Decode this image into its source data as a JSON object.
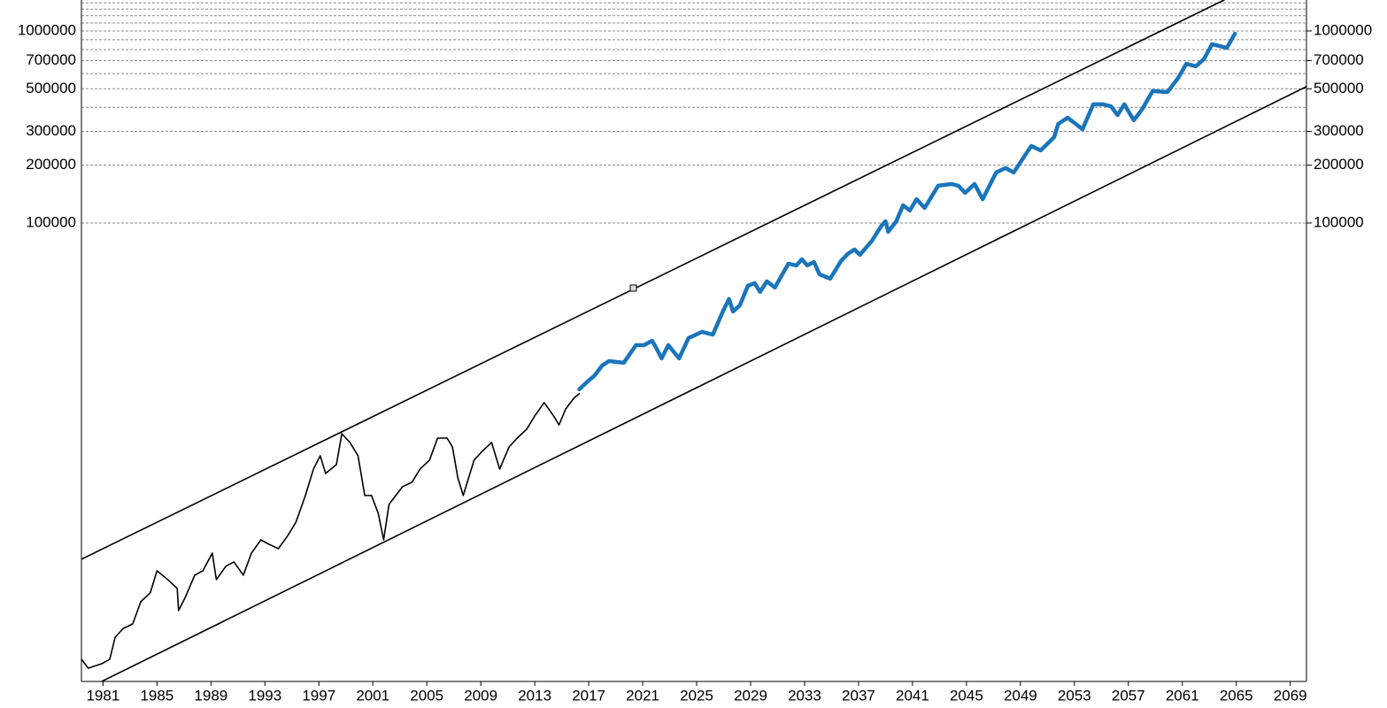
{
  "chart_data": {
    "type": "line",
    "log_scale": true,
    "grid": true,
    "xlim": [
      1979.4,
      2070.2
    ],
    "xticks": [
      1981,
      1985,
      1989,
      1993,
      1997,
      2001,
      2005,
      2009,
      2013,
      2017,
      2021,
      2025,
      2029,
      2033,
      2037,
      2041,
      2045,
      2049,
      2053,
      2057,
      2061,
      2065,
      2069
    ],
    "ylim": [
      410,
      1449000
    ],
    "yticks": [
      100000,
      200000,
      300000,
      500000,
      700000,
      1000000
    ],
    "minor_gridlines": [
      400000,
      600000,
      800000,
      900000,
      1100000,
      1200000,
      1300000,
      1400000
    ],
    "series": [
      {
        "color": "#000000",
        "x": [
          1979.4,
          1979.9,
          1980.9,
          1981.5,
          1981.9,
          1982.5,
          1983.2,
          1983.8,
          1984.5,
          1985.0,
          1985.8,
          1986.5,
          1986.6,
          1987.1,
          1987.8,
          1988.4,
          1989.1,
          1989.4,
          1990.1,
          1990.7,
          1991.4,
          1992.0,
          1992.7,
          1993.3,
          1994.0,
          1994.7,
          1995.3,
          1996.0,
          1996.6,
          1997.1,
          1997.5,
          1998.3,
          1998.7,
          1999.3,
          1999.9,
          2000.4,
          2000.9,
          2001.4,
          2001.8,
          2002.2,
          2002.7,
          2003.2,
          2003.9,
          2004.5,
          2005.2,
          2005.8,
          2006.5,
          2006.9,
          2007.3,
          2007.7,
          2008.0,
          2008.5,
          2009.1,
          2009.8,
          2010.1,
          2010.4,
          2011.1,
          2011.7,
          2012.4,
          2013.0,
          2013.7,
          2014.4,
          2014.8,
          2015.3,
          2015.9,
          2016.3
        ],
        "values": [
          535,
          481,
          507,
          535,
          697,
          774,
          817,
          1067,
          1186,
          1545,
          1390,
          1250,
          959,
          1125,
          1466,
          1545,
          1910,
          1390,
          1629,
          1718,
          1466,
          1910,
          2239,
          2123,
          2014,
          2360,
          2767,
          3811,
          5236,
          6138,
          4966,
          5521,
          8000,
          7194,
          6138,
          3811,
          3811,
          3076,
          2239,
          3428,
          3811,
          4236,
          4467,
          5236,
          5821,
          7586,
          7586,
          6823,
          4710,
          3811,
          4467,
          5821,
          6471,
          7194,
          6138,
          5236,
          6823,
          7586,
          8433,
          9886,
          11610,
          9886,
          8892,
          10770,
          12250,
          12910
        ]
      },
      {
        "color": "#1a75bb",
        "x": [
          2016.3,
          2017.0,
          2017.4,
          2018.0,
          2018.5,
          2019.6,
          2020.5,
          2021.1,
          2021.7,
          2022.0,
          2022.4,
          2022.9,
          2023.7,
          2024.4,
          2025.4,
          2026.2,
          2027.0,
          2027.4,
          2027.7,
          2028.2,
          2028.8,
          2029.3,
          2029.7,
          2030.2,
          2030.8,
          2031.8,
          2032.4,
          2032.8,
          2033.2,
          2033.7,
          2034.1,
          2034.9,
          2035.7,
          2036.2,
          2036.7,
          2037.1,
          2038.0,
          2038.7,
          2039.0,
          2039.2,
          2039.8,
          2040.3,
          2040.8,
          2041.3,
          2041.9,
          2042.9,
          2043.9,
          2044.4,
          2044.9,
          2045.6,
          2046.2,
          2047.2,
          2047.9,
          2048.5,
          2049.8,
          2050.5,
          2051.5,
          2051.8,
          2052.5,
          2053.1,
          2053.6,
          2054.4,
          2055.1,
          2055.7,
          2056.2,
          2056.7,
          2057.4,
          2058.0,
          2058.8,
          2059.9,
          2060.7,
          2061.3,
          2062.0,
          2062.6,
          2063.2,
          2064.3,
          2064.9
        ],
        "values": [
          13610,
          15140,
          15960,
          18110,
          19100,
          18710,
          23120,
          23120,
          24380,
          22390,
          19720,
          23120,
          19720,
          25180,
          27100,
          26240,
          35320,
          40180,
          34590,
          37240,
          47100,
          48640,
          43750,
          49660,
          46130,
          61380,
          60120,
          64710,
          60120,
          62660,
          54080,
          51290,
          63390,
          69020,
          72780,
          68230,
          80910,
          96830,
          102100,
          89950,
          102100,
          123600,
          116100,
          133000,
          119700,
          156300,
          159600,
          156300,
          143500,
          159600,
          133000,
          183200,
          193200,
          183200,
          251800,
          238800,
          279900,
          328100,
          353200,
          328100,
          307600,
          415000,
          415000,
          405500,
          364800,
          415000,
          342800,
          389000,
          486400,
          480800,
          570200,
          674500,
          654600,
          712900,
          853100,
          816600,
          968300
        ]
      },
      {
        "color": "#000000",
        "x": [
          1979.4,
          2064.1
        ],
        "values": [
          1775,
          1449000
        ]
      },
      {
        "color": "#000000",
        "x": [
          1980.9,
          2070.2
        ],
        "values": [
          410,
          513000
        ]
      }
    ]
  }
}
